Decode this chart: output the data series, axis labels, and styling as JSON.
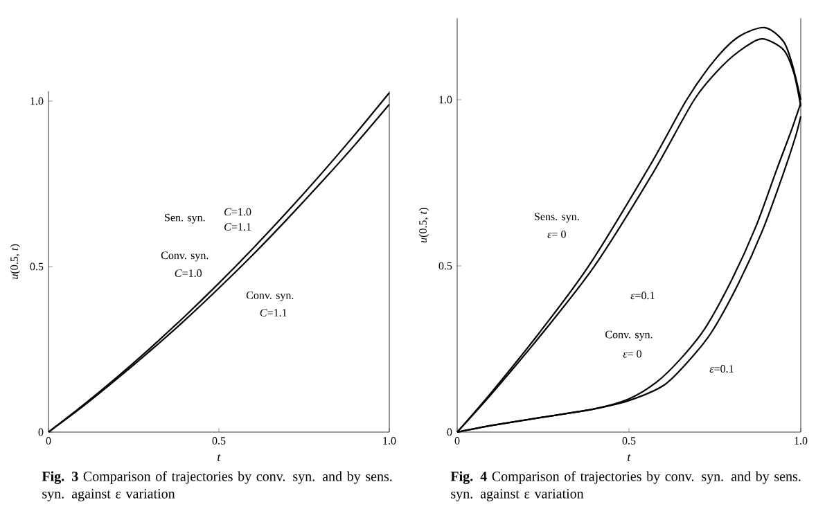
{
  "chart_data": [
    {
      "type": "line",
      "title": "**Fig. 3**  Comparison of trajectories by conv. syn. and by sens. syn. against ε variation",
      "xlabel": "*t*",
      "ylabel": "*u*(0.5, *t*)",
      "xlim": [
        0,
        1
      ],
      "ylim": [
        0,
        1.03
      ],
      "xticks": [
        0,
        0.5,
        {
          "value": 1,
          "label": "1.0"
        }
      ],
      "yticks": [
        0,
        0.5,
        {
          "value": 1,
          "label": "1.0"
        }
      ],
      "marker": "none",
      "series": [
        {
          "color": "#000000",
          "x": [
            0,
            0.1,
            0.2,
            0.3,
            0.4,
            0.5,
            0.6,
            0.7,
            0.8,
            0.9,
            1.0
          ],
          "values": [
            0,
            0.08,
            0.165,
            0.255,
            0.35,
            0.45,
            0.555,
            0.665,
            0.78,
            0.9,
            1.025
          ]
        },
        {
          "color": "#000000",
          "x": [
            0,
            0.1,
            0.2,
            0.3,
            0.4,
            0.5,
            0.6,
            0.7,
            0.8,
            0.9,
            1.0
          ],
          "values": [
            0,
            0.077,
            0.16,
            0.247,
            0.338,
            0.435,
            0.536,
            0.643,
            0.754,
            0.869,
            0.99
          ]
        }
      ],
      "annotations": [
        "Sen. syn.",
        "*C*=1.0",
        "*C*=1.1",
        "Conv. syn.",
        "*C*=1.0",
        "Conv. syn.",
        "*C*=1.1"
      ]
    },
    {
      "type": "line",
      "title": "**Fig. 4**  Comparison of trajectories by conv. syn. and by sens. syn. against ε variation",
      "xlabel": "*t*",
      "ylabel": "*u*(0.5, *t*)",
      "xlim": [
        0,
        1
      ],
      "ylim": [
        0,
        1.245
      ],
      "xticks": [
        0,
        0.5,
        {
          "value": 1,
          "label": "1.0"
        }
      ],
      "yticks": [
        0,
        0.5,
        {
          "value": 1,
          "label": "1.0"
        }
      ],
      "marker": "none",
      "series": [
        {
          "color": "#000000",
          "x": [
            0,
            0.1,
            0.24,
            0.383,
            0.56,
            0.668,
            0.75,
            0.82,
            0.895,
            0.95,
            0.977,
            1.0
          ],
          "values": [
            0,
            0.12,
            0.3,
            0.5,
            0.8,
            1.0,
            1.12,
            1.19,
            1.217,
            1.175,
            1.1,
            1.0
          ]
        },
        {
          "color": "#000000",
          "x": [
            0,
            0.1,
            0.25,
            0.4,
            0.57,
            0.69,
            0.77,
            0.84,
            0.89,
            0.95,
            0.98,
            1.0
          ],
          "values": [
            0,
            0.115,
            0.3,
            0.5,
            0.78,
            1.0,
            1.1,
            1.16,
            1.183,
            1.15,
            1.08,
            0.98
          ]
        },
        {
          "color": "#000000",
          "x": [
            0,
            0.1,
            0.25,
            0.4,
            0.5,
            0.58,
            0.65,
            0.72,
            0.8,
            0.87,
            0.93,
            0.97,
            1.0
          ],
          "values": [
            0,
            0.02,
            0.045,
            0.07,
            0.1,
            0.15,
            0.22,
            0.31,
            0.46,
            0.62,
            0.79,
            0.9,
            0.99
          ]
        },
        {
          "color": "#000000",
          "x": [
            0,
            0.1,
            0.25,
            0.4,
            0.5,
            0.6,
            0.67,
            0.74,
            0.82,
            0.89,
            0.95,
            0.985,
            1.0
          ],
          "values": [
            0,
            0.02,
            0.045,
            0.07,
            0.095,
            0.14,
            0.21,
            0.3,
            0.45,
            0.61,
            0.78,
            0.89,
            0.95
          ]
        }
      ],
      "annotations": [
        "Sens. syn.",
        "*ε*= 0",
        "*ε*=0.1",
        "Conv. syn.",
        "*ε*= 0",
        "*ε*=0.1"
      ]
    }
  ]
}
